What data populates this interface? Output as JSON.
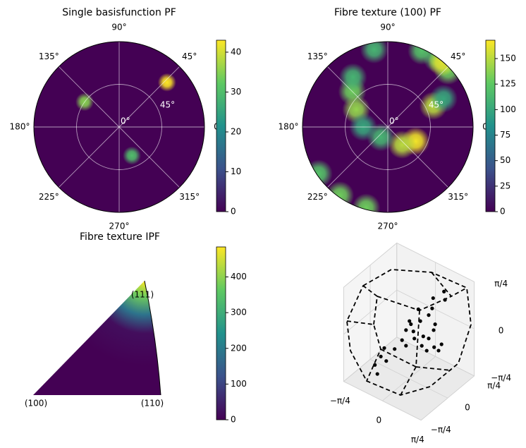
{
  "chart_data": [
    {
      "type": "polar_heatmap",
      "title": "Single basisfunction PF",
      "angle_ticks": [
        {
          "value": 0,
          "label": "0°"
        },
        {
          "value": 45,
          "label": "45°"
        },
        {
          "value": 90,
          "label": "90°"
        },
        {
          "value": 135,
          "label": "135°"
        },
        {
          "value": 180,
          "label": "180°"
        },
        {
          "value": 225,
          "label": "225°"
        },
        {
          "value": 270,
          "label": "270°"
        },
        {
          "value": 315,
          "label": "315°"
        }
      ],
      "radial_ticks": [
        {
          "value": 0,
          "label": "0°"
        },
        {
          "value": 45,
          "label": "45°"
        }
      ],
      "rlim": [
        0,
        90
      ],
      "clim": [
        0,
        43
      ],
      "cticks": [
        0,
        10,
        20,
        30,
        40
      ],
      "spots": [
        {
          "angle": 43,
          "radius": 69,
          "value": 43
        },
        {
          "angle": 144,
          "radius": 45,
          "value": 35
        },
        {
          "angle": 294,
          "radius": 33,
          "value": 30
        }
      ]
    },
    {
      "type": "polar_heatmap",
      "title": "Fibre texture (100) PF",
      "angle_ticks": [
        {
          "value": 0,
          "label": "0°"
        },
        {
          "value": 45,
          "label": "45°"
        },
        {
          "value": 90,
          "label": "90°"
        },
        {
          "value": 135,
          "label": "135°"
        },
        {
          "value": 180,
          "label": "180°"
        },
        {
          "value": 225,
          "label": "225°"
        },
        {
          "value": 270,
          "label": "270°"
        },
        {
          "value": 315,
          "label": "315°"
        }
      ],
      "radial_ticks": [
        {
          "value": 0,
          "label": "0°"
        },
        {
          "value": 45,
          "label": "45°"
        }
      ],
      "rlim": [
        0,
        90
      ],
      "clim": [
        0,
        168
      ],
      "cticks": [
        0,
        25,
        50,
        75,
        100,
        125,
        150
      ],
      "spots": [
        {
          "angle": 135,
          "radius": 53,
          "value": 130
        },
        {
          "angle": 151,
          "radius": 38,
          "value": 140
        },
        {
          "angle": 100,
          "radius": 83,
          "value": 110
        },
        {
          "angle": 66,
          "radius": 88,
          "value": 120
        },
        {
          "angle": 43,
          "radius": 87,
          "value": 130
        },
        {
          "angle": 25,
          "radius": 53,
          "value": 150
        },
        {
          "angle": 333,
          "radius": 33,
          "value": 165
        },
        {
          "angle": 309,
          "radius": 24,
          "value": 150
        },
        {
          "angle": 236,
          "radius": 13,
          "value": 110
        },
        {
          "angle": 180,
          "radius": 26,
          "value": 100
        },
        {
          "angle": 125,
          "radius": 64,
          "value": 110
        },
        {
          "angle": 54,
          "radius": 89,
          "value": 120
        },
        {
          "angle": 27,
          "radius": 66,
          "value": 100
        },
        {
          "angle": 50,
          "radius": 89,
          "value": 160
        },
        {
          "angle": 214,
          "radius": 88,
          "value": 120
        },
        {
          "angle": 235,
          "radius": 88,
          "value": 130
        },
        {
          "angle": 255,
          "radius": 88,
          "value": 130
        }
      ]
    },
    {
      "type": "ipf",
      "title": "Fibre texture IPF",
      "corners": [
        "(100)",
        "(110)",
        "(111)"
      ],
      "clim": [
        0,
        484
      ],
      "cticks": [
        0,
        100,
        200,
        300,
        400
      ]
    },
    {
      "type": "scatter3d",
      "xticks": [
        {
          "value": -0.785,
          "label": "−π/4"
        },
        0,
        {
          "value": 0.785,
          "label": "π/4"
        }
      ],
      "yticks": [
        {
          "value": -0.785,
          "label": "−π/4"
        },
        0,
        {
          "value": 0.785,
          "label": "π/4"
        }
      ],
      "zticks": [
        {
          "value": -0.785,
          "label": "−π/4"
        },
        0,
        {
          "value": 0.785,
          "label": "π/4"
        }
      ],
      "x": [
        0.49,
        0.71,
        0.73,
        0.47,
        0.19,
        0.4,
        0.01,
        0.23,
        0.53,
        -0.06,
        0.09,
        0.29,
        0.5,
        0.11,
        0.4,
        -0.06,
        0.51,
        0.36,
        0.6,
        -0.5,
        -0.29,
        -0.14,
        0.26,
        -0.57,
        -0.46,
        -0.69,
        -0.64,
        0.66,
        0.04
      ],
      "y": [
        0,
        0,
        0,
        0,
        0,
        0,
        0,
        0,
        0,
        0,
        0,
        0,
        0,
        0,
        0,
        0,
        0,
        0,
        0,
        0,
        0,
        0,
        0,
        0,
        0,
        0,
        0,
        0,
        0
      ],
      "z": [
        0.76,
        0.96,
        0.83,
        0.58,
        0.45,
        0.44,
        0.18,
        0.27,
        0.34,
        0,
        0.04,
        0.04,
        0.23,
        -0.07,
        0.05,
        -0.26,
        -0.05,
        -0.17,
        -0.07,
        -0.48,
        -0.41,
        -0.2,
        -0.13,
        -0.65,
        -0.68,
        -0.84,
        -0.97,
        0.06,
        0.14
      ]
    }
  ]
}
